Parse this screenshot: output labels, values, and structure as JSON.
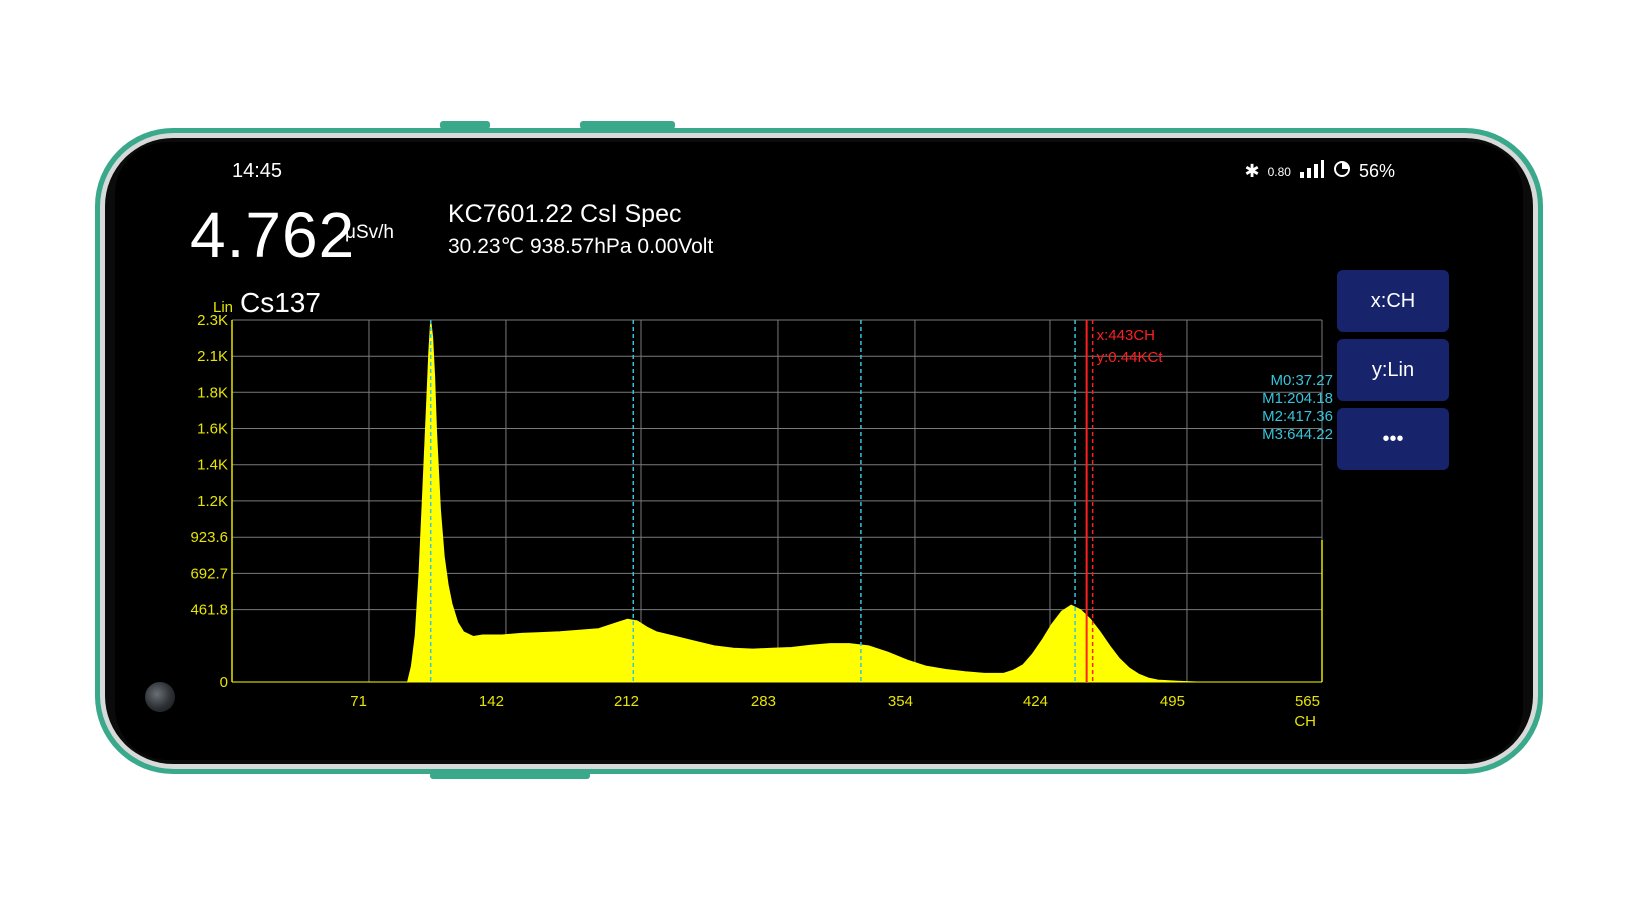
{
  "status": {
    "time": "14:45",
    "icons": [
      "bluetooth-icon",
      "data-icon",
      "signal-icon",
      "battery-icon"
    ],
    "data_text": "0.80",
    "battery": "56%"
  },
  "reading": {
    "dose_value": "4.762",
    "dose_unit": "μSv/h"
  },
  "device": {
    "name": "KC7601.22 CsI Spec",
    "environment": "30.23℃ 938.57hPa 0.00Volt"
  },
  "plot_header": {
    "scale_mode": "Lin",
    "isotope": "Cs137"
  },
  "buttons": {
    "x_axis": "x:CH",
    "y_axis": "y:Lin",
    "more": "•••"
  },
  "cursor": {
    "x_label": "x:443CH",
    "y_label": "y:0.44KCt"
  },
  "markers": [
    "M0:37.27",
    "M1:204.18",
    "M2:417.36",
    "M3:644.22"
  ],
  "colors": {
    "spectrum": "#ffff00",
    "grid": "#7a7a7a",
    "axis_labels": "#e7e400",
    "marker_line": "#36c4dc",
    "cursor_line": "#ff2020",
    "button_bg": "#17236b"
  },
  "chart_data": {
    "type": "area",
    "title": "Cs137",
    "xlabel": "CH",
    "ylabel": "",
    "x_ticks": [
      "71",
      "142",
      "212",
      "283",
      "354",
      "424",
      "495",
      "565"
    ],
    "x_tick_values": [
      71,
      142,
      212,
      283,
      354,
      424,
      495,
      565
    ],
    "y_ticks": [
      "0",
      "461.8",
      "692.7",
      "923.6",
      "1.2K",
      "1.4K",
      "1.6K",
      "1.8K",
      "2.1K",
      "2.3K"
    ],
    "y_tick_values": [
      0,
      461.8,
      692.7,
      923.6,
      1155,
      1386,
      1617,
      1848,
      2078,
      2309
    ],
    "xlim": [
      0,
      565
    ],
    "ylim": [
      0,
      2309
    ],
    "grid": true,
    "marker_positions": [
      103,
      208,
      326,
      437
    ],
    "cursor_position": 443,
    "series": [
      {
        "x": [
          0,
          91,
          93,
          95,
          97,
          99,
          101,
          102,
          103,
          104,
          105,
          106,
          108,
          110,
          112,
          114,
          117,
          120,
          125,
          130,
          140,
          150,
          160,
          170,
          180,
          190,
          200,
          205,
          210,
          215,
          220,
          230,
          240,
          250,
          260,
          270,
          280,
          290,
          300,
          310,
          320,
          330,
          340,
          350,
          360,
          370,
          380,
          390,
          400,
          405,
          410,
          415,
          420,
          425,
          430,
          435,
          440,
          445,
          450,
          455,
          460,
          465,
          470,
          475,
          480,
          490,
          500,
          565
        ],
        "y": [
          0,
          0,
          100,
          300,
          700,
          1250,
          1800,
          2100,
          2309,
          2200,
          1950,
          1600,
          1100,
          800,
          620,
          500,
          380,
          320,
          290,
          300,
          300,
          310,
          315,
          320,
          330,
          340,
          380,
          400,
          390,
          350,
          320,
          290,
          260,
          230,
          215,
          210,
          215,
          220,
          235,
          245,
          245,
          230,
          190,
          140,
          100,
          80,
          65,
          55,
          55,
          75,
          110,
          180,
          270,
          370,
          450,
          490,
          460,
          400,
          320,
          230,
          150,
          90,
          50,
          25,
          12,
          5,
          0,
          0
        ]
      }
    ]
  }
}
